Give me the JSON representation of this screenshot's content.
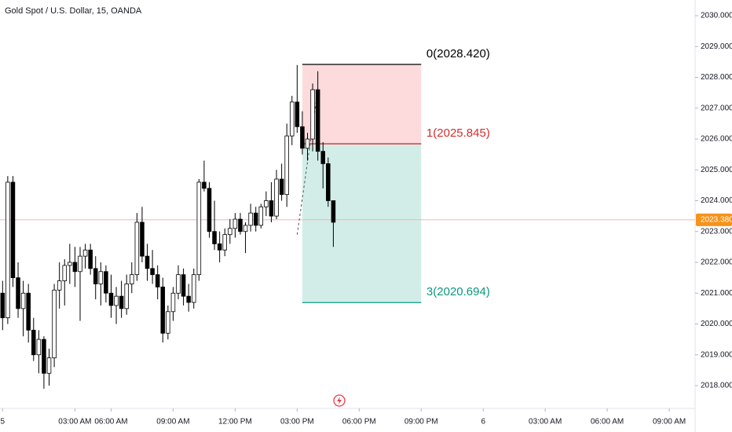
{
  "chart_data": {
    "type": "candlestick",
    "title": "Gold Spot / U.S. Dollar, 15, OANDA",
    "up_color": "#ffffff",
    "down_color": "#000000",
    "open": [
      2021.0,
      2020.2,
      2024.6,
      2021.5,
      2020.5,
      2021.0,
      2019.8,
      2019.0,
      2019.5,
      2018.4,
      2018.9,
      2021.1,
      2021.4,
      2021.9,
      2022.0,
      2021.7,
      2022.2,
      2022.4,
      2021.8,
      2021.3,
      2021.7,
      2021.0,
      2020.6,
      2020.9,
      2020.5,
      2021.3,
      2021.6,
      2023.3,
      2022.2,
      2021.8,
      2021.6,
      2021.2,
      2019.7,
      2020.4,
      2021.0,
      2021.6,
      2020.9,
      2020.7,
      2021.6,
      2024.6,
      2024.4,
      2023.0,
      2022.6,
      2022.4,
      2022.9,
      2023.1,
      2023.4,
      2023.0,
      2023.2,
      2023.6,
      2023.2,
      2023.8,
      2024.0,
      2023.5,
      2024.7,
      2024.2,
      2026.1,
      2027.2,
      2026.4,
      2025.7,
      2026.0,
      2027.6,
      2025.6,
      2025.2,
      2024.0
    ],
    "high": [
      2021.4,
      2024.8,
      2024.8,
      2022.0,
      2021.4,
      2021.3,
      2020.2,
      2019.8,
      2019.6,
      2019.2,
      2021.3,
      2022.0,
      2022.1,
      2022.6,
      2022.5,
      2022.5,
      2022.6,
      2022.6,
      2022.2,
      2022.0,
      2021.9,
      2021.6,
      2021.2,
      2021.4,
      2021.6,
      2022.0,
      2023.6,
      2023.8,
      2022.6,
      2022.4,
      2021.9,
      2021.5,
      2020.6,
      2021.2,
      2021.9,
      2021.8,
      2021.3,
      2021.8,
      2024.7,
      2025.3,
      2024.6,
      2024.0,
      2023.0,
      2023.1,
      2023.4,
      2023.6,
      2023.6,
      2023.3,
      2023.9,
      2023.8,
      2023.9,
      2024.3,
      2024.6,
      2025.0,
      2025.2,
      2026.5,
      2027.4,
      2028.4,
      2026.9,
      2026.2,
      2027.8,
      2028.2,
      2025.9,
      2025.4,
      2024.0
    ],
    "low": [
      2019.8,
      2020.0,
      2021.2,
      2020.2,
      2019.6,
      2019.4,
      2018.8,
      2018.4,
      2017.9,
      2018.0,
      2018.6,
      2020.5,
      2020.6,
      2021.3,
      2021.2,
      2020.1,
      2021.8,
      2021.6,
      2020.8,
      2020.6,
      2020.7,
      2020.2,
      2020.0,
      2020.2,
      2020.3,
      2021.0,
      2021.4,
      2022.0,
      2021.4,
      2021.3,
      2020.8,
      2019.4,
      2019.5,
      2020.1,
      2020.8,
      2020.6,
      2020.4,
      2020.5,
      2021.4,
      2024.3,
      2022.8,
      2022.4,
      2022.0,
      2022.2,
      2022.6,
      2022.8,
      2022.9,
      2022.3,
      2023.0,
      2023.0,
      2023.1,
      2023.5,
      2023.3,
      2023.4,
      2024.0,
      2023.8,
      2025.8,
      2026.2,
      2025.5,
      2025.3,
      2025.6,
      2025.3,
      2024.4,
      2023.8,
      2022.5
    ],
    "close": [
      2020.2,
      2024.6,
      2021.5,
      2020.5,
      2021.0,
      2019.8,
      2019.0,
      2019.5,
      2018.4,
      2018.9,
      2021.1,
      2021.4,
      2021.9,
      2022.0,
      2021.7,
      2022.2,
      2022.4,
      2021.8,
      2021.3,
      2021.7,
      2021.0,
      2020.6,
      2020.9,
      2020.5,
      2021.3,
      2021.6,
      2023.3,
      2022.2,
      2021.8,
      2021.6,
      2021.2,
      2019.7,
      2020.4,
      2021.0,
      2021.6,
      2020.9,
      2020.7,
      2021.6,
      2024.6,
      2024.4,
      2023.0,
      2022.6,
      2022.4,
      2022.9,
      2023.1,
      2023.4,
      2023.0,
      2023.2,
      2023.6,
      2023.2,
      2023.8,
      2024.0,
      2023.5,
      2024.7,
      2024.2,
      2026.1,
      2027.2,
      2026.4,
      2025.7,
      2026.0,
      2027.6,
      2025.6,
      2025.2,
      2024.0,
      2023.3
    ],
    "xlim": [
      -0.5,
      134
    ],
    "xticks": [
      {
        "value": 0,
        "label": "5"
      },
      {
        "value": 14,
        "label": "03:00 AM"
      },
      {
        "value": 21,
        "label": "06:00 AM"
      },
      {
        "value": 33,
        "label": "09:00 AM"
      },
      {
        "value": 45,
        "label": "12:00 PM"
      },
      {
        "value": 57,
        "label": "03:00 PM"
      },
      {
        "value": 69,
        "label": "06:00 PM"
      },
      {
        "value": 81,
        "label": "09:00 PM"
      },
      {
        "value": 93,
        "label": "6"
      },
      {
        "value": 105,
        "label": "03:00 AM"
      },
      {
        "value": 117,
        "label": "06:00 AM"
      },
      {
        "value": 129,
        "label": "09:00 AM"
      }
    ],
    "ylim": [
      2017.26,
      2030.51
    ],
    "yticks": [
      {
        "value": 2018,
        "label": "2018.000"
      },
      {
        "value": 2019,
        "label": "2019.000"
      },
      {
        "value": 2020,
        "label": "2020.000"
      },
      {
        "value": 2021,
        "label": "2021.000"
      },
      {
        "value": 2022,
        "label": "2022.000"
      },
      {
        "value": 2023,
        "label": "2023.000"
      },
      {
        "value": 2024,
        "label": "2024.000"
      },
      {
        "value": 2025,
        "label": "2025.000"
      },
      {
        "value": 2026,
        "label": "2026.000"
      },
      {
        "value": 2027,
        "label": "2027.000"
      },
      {
        "value": 2028,
        "label": "2028.000"
      },
      {
        "value": 2029,
        "label": "2029.000"
      },
      {
        "value": 2030,
        "label": "2030.000"
      }
    ],
    "last_price": {
      "value": 2023.38,
      "label": "2023.380"
    },
    "levels": [
      {
        "value": 2028.42,
        "label": "0(2028.420)",
        "color": "#000000"
      },
      {
        "value": 2025.845,
        "label": "1(2025.845)",
        "color": "#d32f2f"
      },
      {
        "value": 2020.694,
        "label": "3(2020.694)",
        "color": "#089981"
      }
    ]
  }
}
